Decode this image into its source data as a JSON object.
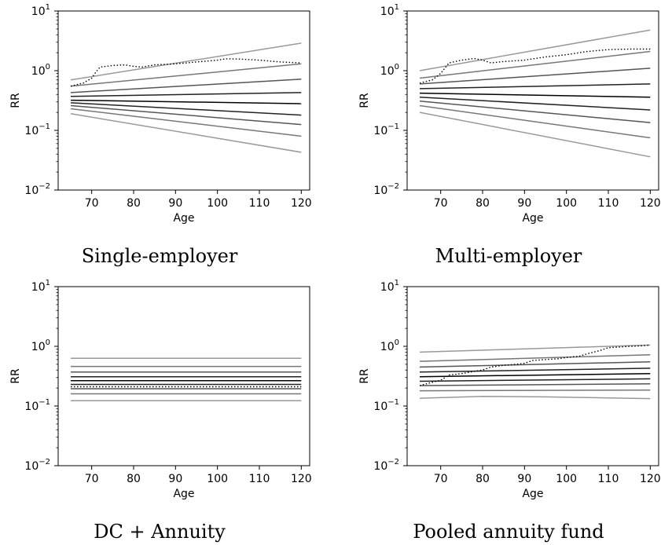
{
  "chart_data": [
    {
      "type": "line",
      "caption": "Single-employer",
      "xlabel": "Age",
      "ylabel": "RR",
      "yscale": "log",
      "xlim": [
        62,
        122
      ],
      "ylim": [
        0.01,
        10
      ],
      "x_ticks": [
        70,
        80,
        90,
        100,
        110,
        120
      ],
      "y_ticks": [
        {
          "base": "10",
          "exp": "−2",
          "value": 0.01
        },
        {
          "base": "10",
          "exp": "−1",
          "value": 0.1
        },
        {
          "base": "10",
          "exp": "0",
          "value": 1
        },
        {
          "base": "10",
          "exp": "1",
          "value": 10
        }
      ],
      "grid": false,
      "series": [
        {
          "style": "solid",
          "color": "#999999",
          "x": [
            65,
            120
          ],
          "y": [
            0.7,
            2.9
          ]
        },
        {
          "style": "solid",
          "color": "#777777",
          "x": [
            65,
            120
          ],
          "y": [
            0.55,
            1.3
          ]
        },
        {
          "style": "solid",
          "color": "#555555",
          "x": [
            65,
            120
          ],
          "y": [
            0.43,
            0.72
          ]
        },
        {
          "style": "solid",
          "color": "#222222",
          "x": [
            65,
            120
          ],
          "y": [
            0.37,
            0.43
          ]
        },
        {
          "style": "solid",
          "color": "#000000",
          "x": [
            65,
            120
          ],
          "y": [
            0.32,
            0.28
          ]
        },
        {
          "style": "solid",
          "color": "#222222",
          "x": [
            65,
            120
          ],
          "y": [
            0.29,
            0.18
          ]
        },
        {
          "style": "solid",
          "color": "#555555",
          "x": [
            65,
            120
          ],
          "y": [
            0.26,
            0.125
          ]
        },
        {
          "style": "solid",
          "color": "#777777",
          "x": [
            65,
            120
          ],
          "y": [
            0.23,
            0.08
          ]
        },
        {
          "style": "solid",
          "color": "#999999",
          "x": [
            65,
            120
          ],
          "y": [
            0.19,
            0.043
          ]
        },
        {
          "style": "dotted",
          "color": "#000000",
          "x": [
            65,
            68,
            70,
            71,
            72,
            75,
            78,
            80,
            82,
            85,
            90,
            95,
            100,
            102,
            105,
            110,
            115,
            120
          ],
          "y": [
            0.55,
            0.62,
            0.75,
            0.95,
            1.15,
            1.22,
            1.25,
            1.18,
            1.15,
            1.25,
            1.3,
            1.4,
            1.5,
            1.58,
            1.57,
            1.5,
            1.4,
            1.35
          ]
        }
      ]
    },
    {
      "type": "line",
      "caption": "Multi-employer",
      "xlabel": "Age",
      "ylabel": "RR",
      "yscale": "log",
      "xlim": [
        62,
        122
      ],
      "ylim": [
        0.01,
        10
      ],
      "x_ticks": [
        70,
        80,
        90,
        100,
        110,
        120
      ],
      "y_ticks": [
        {
          "base": "10",
          "exp": "−2",
          "value": 0.01
        },
        {
          "base": "10",
          "exp": "−1",
          "value": 0.1
        },
        {
          "base": "10",
          "exp": "0",
          "value": 1
        },
        {
          "base": "10",
          "exp": "1",
          "value": 10
        }
      ],
      "grid": false,
      "series": [
        {
          "style": "solid",
          "color": "#999999",
          "x": [
            65,
            120
          ],
          "y": [
            1.0,
            4.8
          ]
        },
        {
          "style": "solid",
          "color": "#777777",
          "x": [
            65,
            120
          ],
          "y": [
            0.75,
            2.1
          ]
        },
        {
          "style": "solid",
          "color": "#555555",
          "x": [
            65,
            120
          ],
          "y": [
            0.6,
            1.1
          ]
        },
        {
          "style": "solid",
          "color": "#222222",
          "x": [
            65,
            120
          ],
          "y": [
            0.5,
            0.6
          ]
        },
        {
          "style": "solid",
          "color": "#000000",
          "x": [
            65,
            120
          ],
          "y": [
            0.42,
            0.36
          ]
        },
        {
          "style": "solid",
          "color": "#222222",
          "x": [
            65,
            120
          ],
          "y": [
            0.36,
            0.22
          ]
        },
        {
          "style": "solid",
          "color": "#555555",
          "x": [
            65,
            120
          ],
          "y": [
            0.31,
            0.135
          ]
        },
        {
          "style": "solid",
          "color": "#777777",
          "x": [
            65,
            120
          ],
          "y": [
            0.26,
            0.075
          ]
        },
        {
          "style": "solid",
          "color": "#999999",
          "x": [
            65,
            120
          ],
          "y": [
            0.2,
            0.036
          ]
        },
        {
          "style": "dotted",
          "color": "#000000",
          "x": [
            65,
            68,
            70,
            72,
            75,
            78,
            80,
            82,
            85,
            90,
            95,
            100,
            105,
            110,
            115,
            120
          ],
          "y": [
            0.62,
            0.7,
            0.9,
            1.35,
            1.5,
            1.6,
            1.5,
            1.35,
            1.42,
            1.5,
            1.7,
            1.85,
            2.1,
            2.25,
            2.3,
            2.3
          ]
        }
      ]
    },
    {
      "type": "line",
      "caption": "DC + Annuity",
      "xlabel": "Age",
      "ylabel": "RR",
      "yscale": "log",
      "xlim": [
        62,
        122
      ],
      "ylim": [
        0.01,
        10
      ],
      "x_ticks": [
        70,
        80,
        90,
        100,
        110,
        120
      ],
      "y_ticks": [
        {
          "base": "10",
          "exp": "−2",
          "value": 0.01
        },
        {
          "base": "10",
          "exp": "−1",
          "value": 0.1
        },
        {
          "base": "10",
          "exp": "0",
          "value": 1
        },
        {
          "base": "10",
          "exp": "1",
          "value": 10
        }
      ],
      "grid": false,
      "series": [
        {
          "style": "solid",
          "color": "#999999",
          "x": [
            65,
            120
          ],
          "y": [
            0.63,
            0.63
          ]
        },
        {
          "style": "solid",
          "color": "#777777",
          "x": [
            65,
            120
          ],
          "y": [
            0.46,
            0.46
          ]
        },
        {
          "style": "solid",
          "color": "#555555",
          "x": [
            65,
            120
          ],
          "y": [
            0.37,
            0.37
          ]
        },
        {
          "style": "solid",
          "color": "#222222",
          "x": [
            65,
            120
          ],
          "y": [
            0.31,
            0.31
          ]
        },
        {
          "style": "solid",
          "color": "#000000",
          "x": [
            65,
            120
          ],
          "y": [
            0.265,
            0.265
          ]
        },
        {
          "style": "solid",
          "color": "#222222",
          "x": [
            65,
            120
          ],
          "y": [
            0.23,
            0.23
          ]
        },
        {
          "style": "solid",
          "color": "#555555",
          "x": [
            65,
            120
          ],
          "y": [
            0.195,
            0.195
          ]
        },
        {
          "style": "solid",
          "color": "#777777",
          "x": [
            65,
            120
          ],
          "y": [
            0.16,
            0.16
          ]
        },
        {
          "style": "solid",
          "color": "#999999",
          "x": [
            65,
            120
          ],
          "y": [
            0.123,
            0.123
          ]
        },
        {
          "style": "dotted",
          "color": "#000000",
          "x": [
            65,
            120
          ],
          "y": [
            0.21,
            0.21
          ]
        }
      ]
    },
    {
      "type": "line",
      "caption": "Pooled annuity fund",
      "xlabel": "Age",
      "ylabel": "RR",
      "yscale": "log",
      "xlim": [
        62,
        122
      ],
      "ylim": [
        0.01,
        10
      ],
      "x_ticks": [
        70,
        80,
        90,
        100,
        110,
        120
      ],
      "y_ticks": [
        {
          "base": "10",
          "exp": "−2",
          "value": 0.01
        },
        {
          "base": "10",
          "exp": "−1",
          "value": 0.1
        },
        {
          "base": "10",
          "exp": "0",
          "value": 1
        },
        {
          "base": "10",
          "exp": "1",
          "value": 10
        }
      ],
      "grid": false,
      "series": [
        {
          "style": "solid",
          "color": "#999999",
          "x": [
            65,
            120
          ],
          "y": [
            0.8,
            1.05
          ]
        },
        {
          "style": "solid",
          "color": "#777777",
          "x": [
            65,
            120
          ],
          "y": [
            0.56,
            0.72
          ]
        },
        {
          "style": "solid",
          "color": "#555555",
          "x": [
            65,
            120
          ],
          "y": [
            0.45,
            0.55
          ]
        },
        {
          "style": "solid",
          "color": "#222222",
          "x": [
            65,
            120
          ],
          "y": [
            0.37,
            0.43
          ]
        },
        {
          "style": "solid",
          "color": "#000000",
          "x": [
            65,
            120
          ],
          "y": [
            0.31,
            0.35
          ]
        },
        {
          "style": "solid",
          "color": "#222222",
          "x": [
            65,
            120
          ],
          "y": [
            0.26,
            0.285
          ]
        },
        {
          "style": "solid",
          "color": "#555555",
          "x": [
            65,
            120
          ],
          "y": [
            0.22,
            0.235
          ]
        },
        {
          "style": "solid",
          "color": "#777777",
          "x": [
            65,
            120
          ],
          "y": [
            0.18,
            0.185
          ]
        },
        {
          "style": "solid",
          "color": "#999999",
          "x": [
            65,
            80,
            95,
            120
          ],
          "y": [
            0.135,
            0.145,
            0.142,
            0.133
          ]
        },
        {
          "style": "dotted",
          "color": "#000000",
          "x": [
            65,
            68,
            70,
            72,
            75,
            78,
            80,
            82,
            85,
            88,
            90,
            92,
            95,
            98,
            100,
            103,
            105,
            108,
            110,
            113,
            115,
            118,
            120
          ],
          "y": [
            0.22,
            0.25,
            0.27,
            0.33,
            0.35,
            0.38,
            0.4,
            0.45,
            0.48,
            0.5,
            0.52,
            0.58,
            0.6,
            0.62,
            0.65,
            0.68,
            0.75,
            0.85,
            0.95,
            0.98,
            1.0,
            1.02,
            1.05
          ]
        }
      ]
    }
  ]
}
